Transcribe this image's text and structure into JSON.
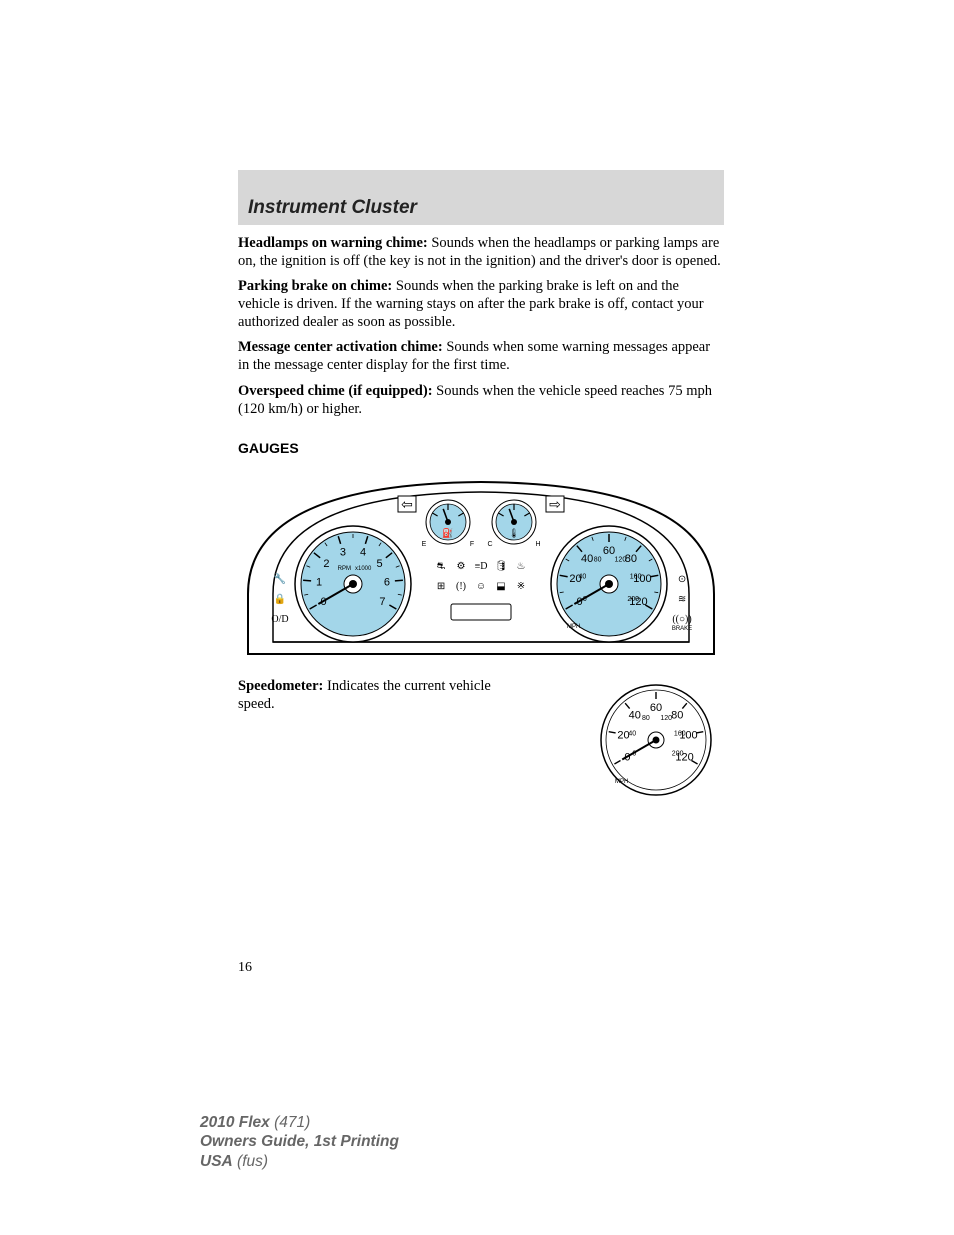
{
  "header": {
    "title": "Instrument Cluster"
  },
  "paragraphs": {
    "p1": {
      "lead": "Headlamps on warning chime:",
      "body": " Sounds when the headlamps or parking lamps are on, the ignition is off (the key is not in the ignition) and the driver's door is opened."
    },
    "p2": {
      "lead": "Parking brake on chime:",
      "body": " Sounds when the parking brake is left on and the vehicle is driven. If the warning stays on after the park brake is off, contact your authorized dealer as soon as possible."
    },
    "p3": {
      "lead": "Message center activation chime:",
      "body": " Sounds when some warning messages appear in the message center display for the first time."
    },
    "p4": {
      "lead": "Overspeed chime (if equipped):",
      "body": " Sounds when the vehicle speed reaches 75 mph (120 km/h) or higher."
    }
  },
  "section": {
    "gauges": "GAUGES"
  },
  "speedometer_text": {
    "lead": "Speedometer:",
    "body": " Indicates the current vehicle speed."
  },
  "page_number": "16",
  "footer": {
    "line1a": "2010 Flex",
    "line1b": " (471)",
    "line2": "Owners Guide, 1st Printing",
    "line3a": "USA",
    "line3b": " (fus)"
  },
  "colors": {
    "gauge_fill": "#a3d6e9",
    "band_bg": "#d7d7d7",
    "stroke": "#000000",
    "footer_text": "#666666"
  },
  "tachometer": {
    "labels": [
      "0",
      "1",
      "2",
      "3",
      "4",
      "5",
      "6",
      "7"
    ],
    "center_top": "RPM",
    "center_bottom": "x1000",
    "use_red_zone": true,
    "red_zone_from_index": 6
  },
  "speedometer": {
    "outer_labels": [
      "0",
      "20",
      "40",
      "60",
      "80",
      "100",
      "120"
    ],
    "inner_labels": [
      "0",
      "40",
      "80",
      "120",
      "160",
      "200"
    ],
    "unit_outer": "MPH",
    "unit_inner": "km/h"
  },
  "fuel_gauge": {
    "left": "E",
    "right": "F",
    "icon": "fuel-pump-icon"
  },
  "temp_gauge": {
    "left": "C",
    "right": "H",
    "icon": "temp-icon"
  },
  "turn_signals": {
    "left": "⇦",
    "right": "⇨"
  },
  "warning_icons_row1": [
    "seatbelt-icon",
    "check-engine-icon",
    "headlamp-icon",
    "oil-icon",
    "coolant-icon"
  ],
  "warning_icons_row2": [
    "battery-icon",
    "brake-icon",
    "airbag-icon",
    "door-ajar-icon",
    "traction-icon"
  ],
  "side_icons_left": [
    "wrench-icon",
    "security-icon",
    "overdrive-icon"
  ],
  "side_icons_right": [
    "cruise-icon",
    "fog-icon",
    "abs-icon"
  ],
  "abs_label": "BRAKE"
}
